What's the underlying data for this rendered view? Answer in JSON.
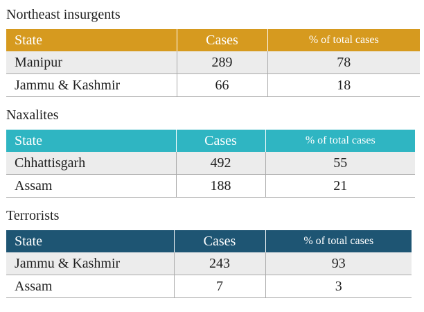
{
  "colors": {
    "northeast_header": "#d69a1f",
    "naxalites_header": "#2fb5c2",
    "terrorists_header": "#1e5573"
  },
  "tables": [
    {
      "title": "Northeast insurgents",
      "columns": [
        "State",
        "Cases",
        "% of total cases"
      ],
      "rows": [
        {
          "state": "Manipur",
          "cases": "289",
          "pct": "78"
        },
        {
          "state": "Jammu & Kashmir",
          "cases": "66",
          "pct": "18"
        }
      ]
    },
    {
      "title": "Naxalites",
      "columns": [
        "State",
        "Cases",
        "% of total cases"
      ],
      "rows": [
        {
          "state": "Chhattisgarh",
          "cases": "492",
          "pct": "55"
        },
        {
          "state": "Assam",
          "cases": "188",
          "pct": "21"
        }
      ]
    },
    {
      "title": "Terrorists",
      "columns": [
        "State",
        "Cases",
        "% of total cases"
      ],
      "rows": [
        {
          "state": "Jammu & Kashmir",
          "cases": "243",
          "pct": "93"
        },
        {
          "state": "Assam",
          "cases": "7",
          "pct": "3"
        }
      ]
    }
  ]
}
